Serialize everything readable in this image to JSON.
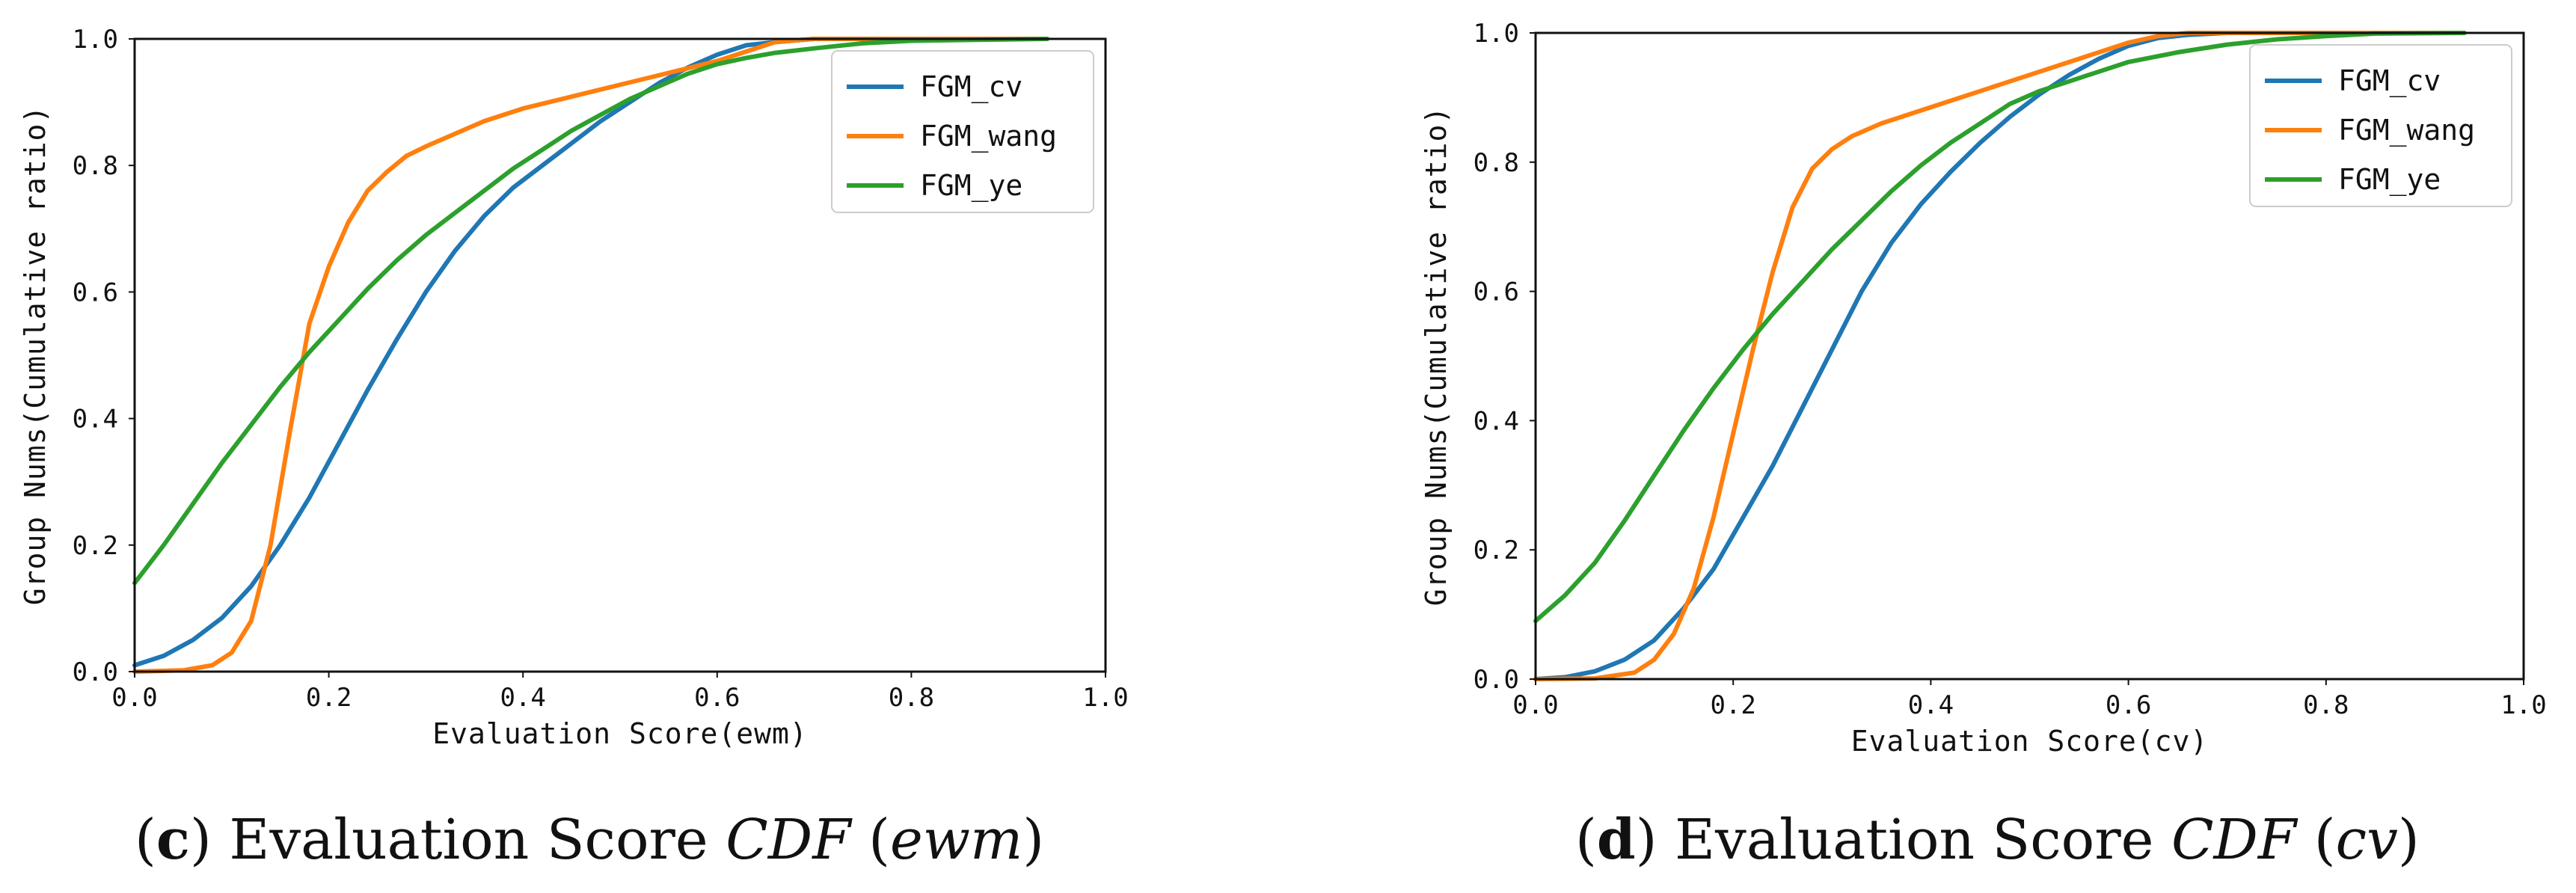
{
  "charts": [
    {
      "ylabel": "Group Nums(Cumulative ratio)",
      "xlabel": "Evaluation Score(ewm)",
      "caption": {
        "open": "(",
        "letter": "c",
        "close": ")",
        "text": " Evaluation Score ",
        "cdf": "CDF",
        "paren_open": " (",
        "method": "ewm",
        "paren_close": ")"
      }
    },
    {
      "ylabel": "Group Nums(Cumulative ratio)",
      "xlabel": "Evaluation Score(cv)",
      "caption": {
        "open": "(",
        "letter": "d",
        "close": ")",
        "text": " Evaluation Score ",
        "cdf": "CDF",
        "paren_open": " (",
        "method": "cv",
        "paren_close": ")"
      }
    }
  ],
  "chart_data": [
    {
      "type": "line",
      "title": "(c) Evaluation Score CDF (ewm)",
      "xlabel": "Evaluation Score(ewm)",
      "ylabel": "Group Nums(Cumulative ratio)",
      "xlim": [
        0.0,
        1.0
      ],
      "ylim": [
        0.0,
        1.0
      ],
      "xticks": [
        "0.0",
        "0.2",
        "0.4",
        "0.6",
        "0.8",
        "1.0"
      ],
      "yticks": [
        "0.0",
        "0.2",
        "0.4",
        "0.6",
        "0.8",
        "1.0"
      ],
      "legend_position": "top-right",
      "series": [
        {
          "name": "FGM_cv",
          "color": "#1f77b4",
          "x": [
            0.0,
            0.03,
            0.06,
            0.09,
            0.12,
            0.15,
            0.18,
            0.21,
            0.24,
            0.27,
            0.3,
            0.33,
            0.36,
            0.39,
            0.42,
            0.45,
            0.48,
            0.51,
            0.54,
            0.57,
            0.6,
            0.63,
            0.66,
            0.7,
            0.75,
            0.8,
            0.94
          ],
          "y": [
            0.01,
            0.025,
            0.05,
            0.085,
            0.135,
            0.2,
            0.275,
            0.36,
            0.445,
            0.525,
            0.6,
            0.665,
            0.72,
            0.765,
            0.8,
            0.835,
            0.87,
            0.9,
            0.93,
            0.955,
            0.975,
            0.99,
            0.995,
            1.0,
            1.0,
            1.0,
            1.0
          ]
        },
        {
          "name": "FGM_wang",
          "color": "#ff7f0e",
          "x": [
            0.0,
            0.05,
            0.08,
            0.1,
            0.12,
            0.14,
            0.16,
            0.18,
            0.2,
            0.22,
            0.24,
            0.26,
            0.28,
            0.3,
            0.33,
            0.36,
            0.4,
            0.44,
            0.48,
            0.52,
            0.56,
            0.6,
            0.63,
            0.66,
            0.7,
            0.8,
            0.94
          ],
          "y": [
            0.0,
            0.002,
            0.01,
            0.03,
            0.08,
            0.2,
            0.38,
            0.55,
            0.64,
            0.71,
            0.76,
            0.79,
            0.815,
            0.83,
            0.85,
            0.87,
            0.89,
            0.905,
            0.92,
            0.935,
            0.95,
            0.965,
            0.98,
            0.995,
            1.0,
            1.0,
            1.0
          ]
        },
        {
          "name": "FGM_ye",
          "color": "#2ca02c",
          "x": [
            0.0,
            0.03,
            0.06,
            0.09,
            0.12,
            0.15,
            0.18,
            0.21,
            0.24,
            0.27,
            0.3,
            0.33,
            0.36,
            0.39,
            0.42,
            0.45,
            0.48,
            0.51,
            0.54,
            0.57,
            0.6,
            0.63,
            0.66,
            0.7,
            0.75,
            0.8,
            0.94
          ],
          "y": [
            0.14,
            0.2,
            0.265,
            0.33,
            0.39,
            0.45,
            0.505,
            0.555,
            0.605,
            0.65,
            0.69,
            0.725,
            0.76,
            0.795,
            0.825,
            0.855,
            0.88,
            0.905,
            0.925,
            0.945,
            0.96,
            0.97,
            0.978,
            0.985,
            0.993,
            0.997,
            1.0
          ]
        }
      ]
    },
    {
      "type": "line",
      "title": "(d) Evaluation Score CDF (cv)",
      "xlabel": "Evaluation Score(cv)",
      "ylabel": "Group Nums(Cumulative ratio)",
      "xlim": [
        0.0,
        1.0
      ],
      "ylim": [
        0.0,
        1.0
      ],
      "xticks": [
        "0.0",
        "0.2",
        "0.4",
        "0.6",
        "0.8",
        "1.0"
      ],
      "yticks": [
        "0.0",
        "0.2",
        "0.4",
        "0.6",
        "0.8",
        "1.0"
      ],
      "legend_position": "top-right",
      "series": [
        {
          "name": "FGM_cv",
          "color": "#1f77b4",
          "x": [
            0.0,
            0.03,
            0.06,
            0.09,
            0.12,
            0.15,
            0.18,
            0.21,
            0.24,
            0.27,
            0.3,
            0.33,
            0.36,
            0.39,
            0.42,
            0.45,
            0.48,
            0.51,
            0.54,
            0.57,
            0.6,
            0.63,
            0.66,
            0.7,
            0.75,
            0.8,
            0.94
          ],
          "y": [
            0.0,
            0.003,
            0.012,
            0.03,
            0.06,
            0.11,
            0.17,
            0.25,
            0.33,
            0.42,
            0.51,
            0.6,
            0.675,
            0.735,
            0.785,
            0.83,
            0.87,
            0.905,
            0.935,
            0.96,
            0.98,
            0.992,
            0.997,
            1.0,
            1.0,
            1.0,
            1.0
          ]
        },
        {
          "name": "FGM_wang",
          "color": "#ff7f0e",
          "x": [
            0.0,
            0.06,
            0.1,
            0.12,
            0.14,
            0.16,
            0.18,
            0.2,
            0.22,
            0.24,
            0.26,
            0.28,
            0.3,
            0.32,
            0.35,
            0.4,
            0.45,
            0.5,
            0.55,
            0.6,
            0.63,
            0.66,
            0.7,
            0.8,
            0.94
          ],
          "y": [
            0.0,
            0.001,
            0.01,
            0.03,
            0.07,
            0.14,
            0.25,
            0.38,
            0.51,
            0.63,
            0.73,
            0.79,
            0.82,
            0.84,
            0.86,
            0.885,
            0.91,
            0.935,
            0.96,
            0.985,
            0.995,
            1.0,
            1.0,
            1.0,
            1.0
          ]
        },
        {
          "name": "FGM_ye",
          "color": "#2ca02c",
          "x": [
            0.0,
            0.03,
            0.06,
            0.09,
            0.12,
            0.15,
            0.18,
            0.21,
            0.24,
            0.27,
            0.3,
            0.33,
            0.36,
            0.39,
            0.42,
            0.45,
            0.48,
            0.51,
            0.54,
            0.57,
            0.6,
            0.65,
            0.7,
            0.75,
            0.8,
            0.85,
            0.94
          ],
          "y": [
            0.09,
            0.13,
            0.18,
            0.245,
            0.315,
            0.385,
            0.45,
            0.51,
            0.565,
            0.615,
            0.665,
            0.71,
            0.755,
            0.795,
            0.83,
            0.86,
            0.89,
            0.91,
            0.925,
            0.94,
            0.955,
            0.97,
            0.982,
            0.99,
            0.995,
            0.999,
            1.0
          ]
        }
      ]
    }
  ]
}
